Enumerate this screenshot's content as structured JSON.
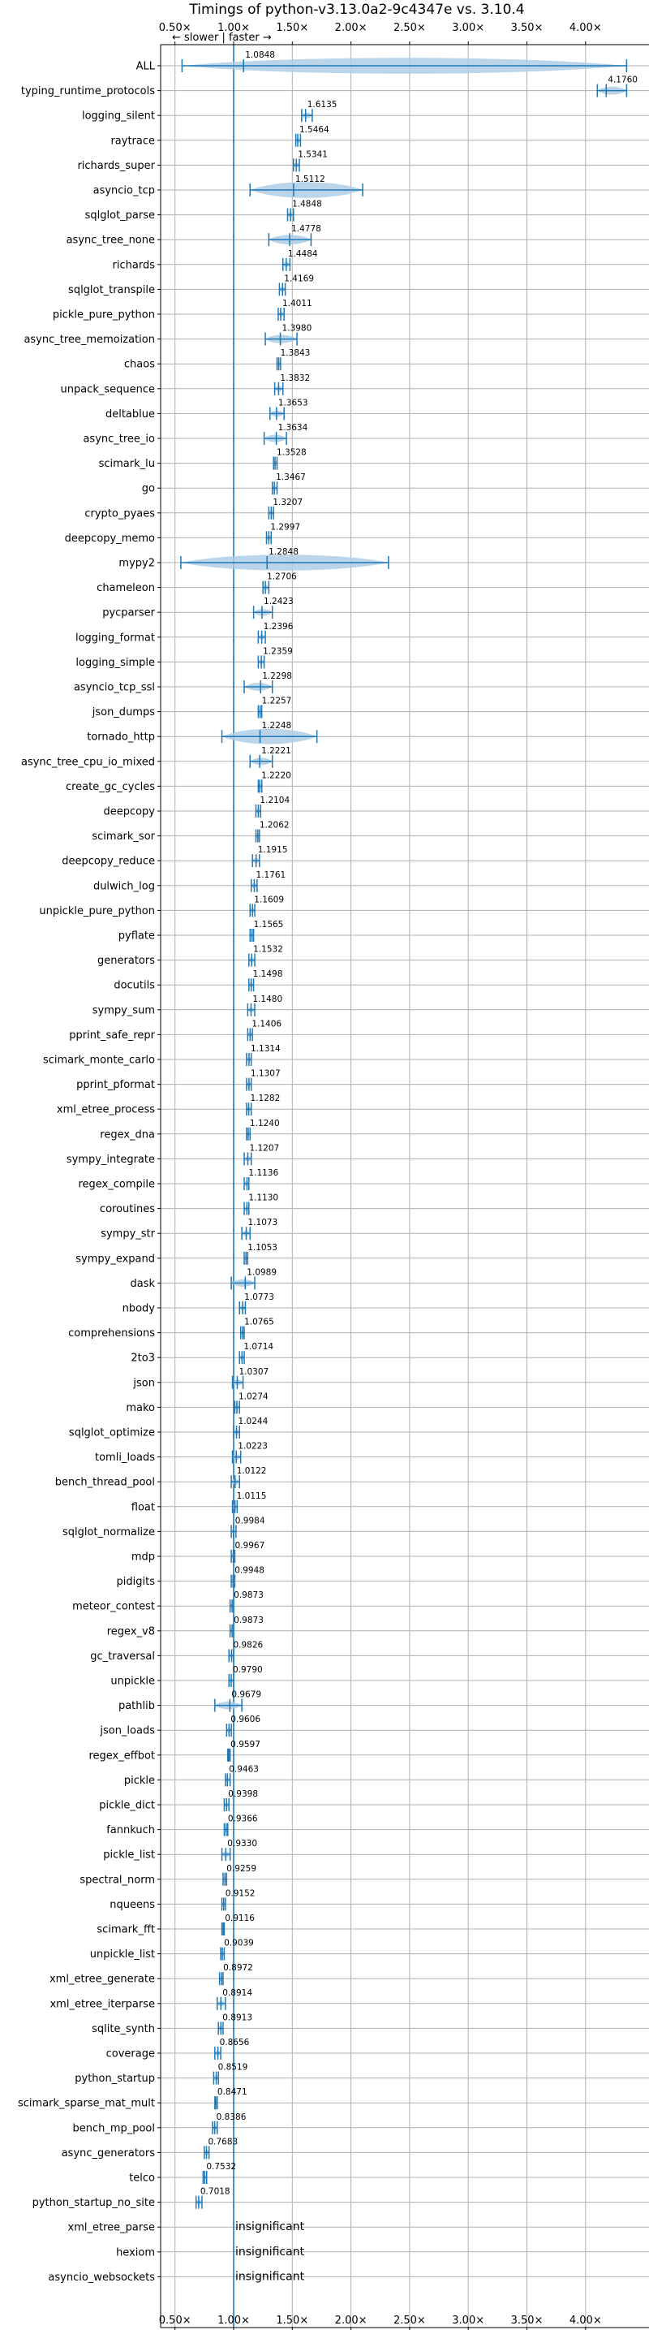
{
  "chart_data": {
    "type": "violin",
    "title": "Timings of python-v3.13.0a2-9c4347e vs. 3.10.4",
    "direction_note": "← slower | faster →",
    "xlim": [
      0.4,
      4.3
    ],
    "x_ticks": [
      0.5,
      1.0,
      1.5,
      2.0,
      2.5,
      3.0,
      3.5,
      4.0
    ],
    "x_tick_labels": [
      "0.50×",
      "1.00×",
      "1.50×",
      "2.00×",
      "2.50×",
      "3.00×",
      "3.50×",
      "4.00×"
    ],
    "reference_line": 1.0,
    "grid": true,
    "colors": {
      "violin": "#aecde6",
      "line": "#1f77b4"
    },
    "insignificant_label": "insignificant",
    "benchmarks": [
      {
        "name": "ALL",
        "value": 1.0848,
        "min": 0.56,
        "max": 4.35
      },
      {
        "name": "typing_runtime_protocols",
        "value": 4.176,
        "min": 4.1,
        "max": 4.35
      },
      {
        "name": "logging_silent",
        "value": 1.6135,
        "min": 1.58,
        "max": 1.67
      },
      {
        "name": "raytrace",
        "value": 1.5464,
        "min": 1.53,
        "max": 1.57
      },
      {
        "name": "richards_super",
        "value": 1.5341,
        "min": 1.51,
        "max": 1.56
      },
      {
        "name": "asyncio_tcp",
        "value": 1.5112,
        "min": 1.14,
        "max": 2.1
      },
      {
        "name": "sqlglot_parse",
        "value": 1.4848,
        "min": 1.46,
        "max": 1.51
      },
      {
        "name": "async_tree_none",
        "value": 1.4778,
        "min": 1.3,
        "max": 1.66
      },
      {
        "name": "richards",
        "value": 1.4484,
        "min": 1.42,
        "max": 1.48
      },
      {
        "name": "sqlglot_transpile",
        "value": 1.4169,
        "min": 1.39,
        "max": 1.44
      },
      {
        "name": "pickle_pure_python",
        "value": 1.4011,
        "min": 1.38,
        "max": 1.43
      },
      {
        "name": "async_tree_memoization",
        "value": 1.398,
        "min": 1.27,
        "max": 1.54
      },
      {
        "name": "chaos",
        "value": 1.3843,
        "min": 1.37,
        "max": 1.4
      },
      {
        "name": "unpack_sequence",
        "value": 1.3832,
        "min": 1.35,
        "max": 1.42
      },
      {
        "name": "deltablue",
        "value": 1.3653,
        "min": 1.31,
        "max": 1.43
      },
      {
        "name": "async_tree_io",
        "value": 1.3634,
        "min": 1.26,
        "max": 1.45
      },
      {
        "name": "scimark_lu",
        "value": 1.3528,
        "min": 1.34,
        "max": 1.37
      },
      {
        "name": "go",
        "value": 1.3467,
        "min": 1.33,
        "max": 1.37
      },
      {
        "name": "crypto_pyaes",
        "value": 1.3207,
        "min": 1.3,
        "max": 1.34
      },
      {
        "name": "deepcopy_memo",
        "value": 1.2997,
        "min": 1.28,
        "max": 1.32
      },
      {
        "name": "mypy2",
        "value": 1.2848,
        "min": 0.55,
        "max": 2.32
      },
      {
        "name": "chameleon",
        "value": 1.2706,
        "min": 1.25,
        "max": 1.3
      },
      {
        "name": "pycparser",
        "value": 1.2423,
        "min": 1.17,
        "max": 1.33
      },
      {
        "name": "logging_format",
        "value": 1.2396,
        "min": 1.21,
        "max": 1.27
      },
      {
        "name": "logging_simple",
        "value": 1.2359,
        "min": 1.21,
        "max": 1.26
      },
      {
        "name": "asyncio_tcp_ssl",
        "value": 1.2298,
        "min": 1.09,
        "max": 1.33
      },
      {
        "name": "json_dumps",
        "value": 1.2257,
        "min": 1.21,
        "max": 1.24
      },
      {
        "name": "tornado_http",
        "value": 1.2248,
        "min": 0.9,
        "max": 1.71
      },
      {
        "name": "async_tree_cpu_io_mixed",
        "value": 1.2221,
        "min": 1.14,
        "max": 1.33
      },
      {
        "name": "create_gc_cycles",
        "value": 1.222,
        "min": 1.21,
        "max": 1.24
      },
      {
        "name": "deepcopy",
        "value": 1.2104,
        "min": 1.19,
        "max": 1.23
      },
      {
        "name": "scimark_sor",
        "value": 1.2062,
        "min": 1.19,
        "max": 1.22
      },
      {
        "name": "deepcopy_reduce",
        "value": 1.1915,
        "min": 1.16,
        "max": 1.22
      },
      {
        "name": "dulwich_log",
        "value": 1.1761,
        "min": 1.15,
        "max": 1.2
      },
      {
        "name": "unpickle_pure_python",
        "value": 1.1609,
        "min": 1.14,
        "max": 1.18
      },
      {
        "name": "pyflate",
        "value": 1.1565,
        "min": 1.14,
        "max": 1.17
      },
      {
        "name": "generators",
        "value": 1.1532,
        "min": 1.13,
        "max": 1.18
      },
      {
        "name": "docutils",
        "value": 1.1498,
        "min": 1.13,
        "max": 1.17
      },
      {
        "name": "sympy_sum",
        "value": 1.148,
        "min": 1.12,
        "max": 1.18
      },
      {
        "name": "pprint_safe_repr",
        "value": 1.1406,
        "min": 1.12,
        "max": 1.16
      },
      {
        "name": "scimark_monte_carlo",
        "value": 1.1314,
        "min": 1.11,
        "max": 1.15
      },
      {
        "name": "pprint_pformat",
        "value": 1.1307,
        "min": 1.11,
        "max": 1.15
      },
      {
        "name": "xml_etree_process",
        "value": 1.1282,
        "min": 1.11,
        "max": 1.15
      },
      {
        "name": "regex_dna",
        "value": 1.124,
        "min": 1.11,
        "max": 1.14
      },
      {
        "name": "sympy_integrate",
        "value": 1.1207,
        "min": 1.09,
        "max": 1.15
      },
      {
        "name": "regex_compile",
        "value": 1.1136,
        "min": 1.09,
        "max": 1.13
      },
      {
        "name": "coroutines",
        "value": 1.113,
        "min": 1.09,
        "max": 1.13
      },
      {
        "name": "sympy_str",
        "value": 1.1073,
        "min": 1.07,
        "max": 1.14
      },
      {
        "name": "sympy_expand",
        "value": 1.1053,
        "min": 1.09,
        "max": 1.12
      },
      {
        "name": "dask",
        "value": 1.0989,
        "min": 0.98,
        "max": 1.18
      },
      {
        "name": "nbody",
        "value": 1.0773,
        "min": 1.05,
        "max": 1.1
      },
      {
        "name": "comprehensions",
        "value": 1.0765,
        "min": 1.06,
        "max": 1.09
      },
      {
        "name": "2to3",
        "value": 1.0714,
        "min": 1.05,
        "max": 1.09
      },
      {
        "name": "json",
        "value": 1.0307,
        "min": 0.99,
        "max": 1.08
      },
      {
        "name": "mako",
        "value": 1.0274,
        "min": 1.01,
        "max": 1.05
      },
      {
        "name": "sqlglot_optimize",
        "value": 1.0244,
        "min": 1.0,
        "max": 1.05
      },
      {
        "name": "tomli_loads",
        "value": 1.0223,
        "min": 0.99,
        "max": 1.06
      },
      {
        "name": "bench_thread_pool",
        "value": 1.0122,
        "min": 0.98,
        "max": 1.05
      },
      {
        "name": "float",
        "value": 1.0115,
        "min": 0.99,
        "max": 1.03
      },
      {
        "name": "sqlglot_normalize",
        "value": 0.9984,
        "min": 0.98,
        "max": 1.02
      },
      {
        "name": "mdp",
        "value": 0.9967,
        "min": 0.98,
        "max": 1.01
      },
      {
        "name": "pidigits",
        "value": 0.9948,
        "min": 0.98,
        "max": 1.01
      },
      {
        "name": "meteor_contest",
        "value": 0.9873,
        "min": 0.97,
        "max": 1.0
      },
      {
        "name": "regex_v8",
        "value": 0.9873,
        "min": 0.97,
        "max": 1.0
      },
      {
        "name": "gc_traversal",
        "value": 0.9826,
        "min": 0.96,
        "max": 1.0
      },
      {
        "name": "unpickle",
        "value": 0.979,
        "min": 0.96,
        "max": 1.0
      },
      {
        "name": "pathlib",
        "value": 0.9679,
        "min": 0.84,
        "max": 1.07
      },
      {
        "name": "json_loads",
        "value": 0.9606,
        "min": 0.94,
        "max": 0.98
      },
      {
        "name": "regex_effbot",
        "value": 0.9597,
        "min": 0.95,
        "max": 0.97
      },
      {
        "name": "pickle",
        "value": 0.9463,
        "min": 0.93,
        "max": 0.97
      },
      {
        "name": "pickle_dict",
        "value": 0.9398,
        "min": 0.92,
        "max": 0.96
      },
      {
        "name": "fannkuch",
        "value": 0.9366,
        "min": 0.92,
        "max": 0.95
      },
      {
        "name": "pickle_list",
        "value": 0.933,
        "min": 0.9,
        "max": 0.97
      },
      {
        "name": "spectral_norm",
        "value": 0.9259,
        "min": 0.91,
        "max": 0.94
      },
      {
        "name": "nqueens",
        "value": 0.9152,
        "min": 0.9,
        "max": 0.93
      },
      {
        "name": "scimark_fft",
        "value": 0.9116,
        "min": 0.9,
        "max": 0.92
      },
      {
        "name": "unpickle_list",
        "value": 0.9039,
        "min": 0.89,
        "max": 0.92
      },
      {
        "name": "xml_etree_generate",
        "value": 0.8972,
        "min": 0.88,
        "max": 0.91
      },
      {
        "name": "xml_etree_iterparse",
        "value": 0.8914,
        "min": 0.86,
        "max": 0.93
      },
      {
        "name": "sqlite_synth",
        "value": 0.8913,
        "min": 0.87,
        "max": 0.91
      },
      {
        "name": "coverage",
        "value": 0.8656,
        "min": 0.84,
        "max": 0.89
      },
      {
        "name": "python_startup",
        "value": 0.8519,
        "min": 0.83,
        "max": 0.87
      },
      {
        "name": "scimark_sparse_mat_mult",
        "value": 0.8471,
        "min": 0.84,
        "max": 0.86
      },
      {
        "name": "bench_mp_pool",
        "value": 0.8386,
        "min": 0.82,
        "max": 0.86
      },
      {
        "name": "async_generators",
        "value": 0.7683,
        "min": 0.75,
        "max": 0.79
      },
      {
        "name": "telco",
        "value": 0.7532,
        "min": 0.74,
        "max": 0.77
      },
      {
        "name": "python_startup_no_site",
        "value": 0.7018,
        "min": 0.68,
        "max": 0.73
      },
      {
        "name": "xml_etree_parse",
        "value": null
      },
      {
        "name": "hexiom",
        "value": null
      },
      {
        "name": "asyncio_websockets",
        "value": null
      }
    ]
  }
}
